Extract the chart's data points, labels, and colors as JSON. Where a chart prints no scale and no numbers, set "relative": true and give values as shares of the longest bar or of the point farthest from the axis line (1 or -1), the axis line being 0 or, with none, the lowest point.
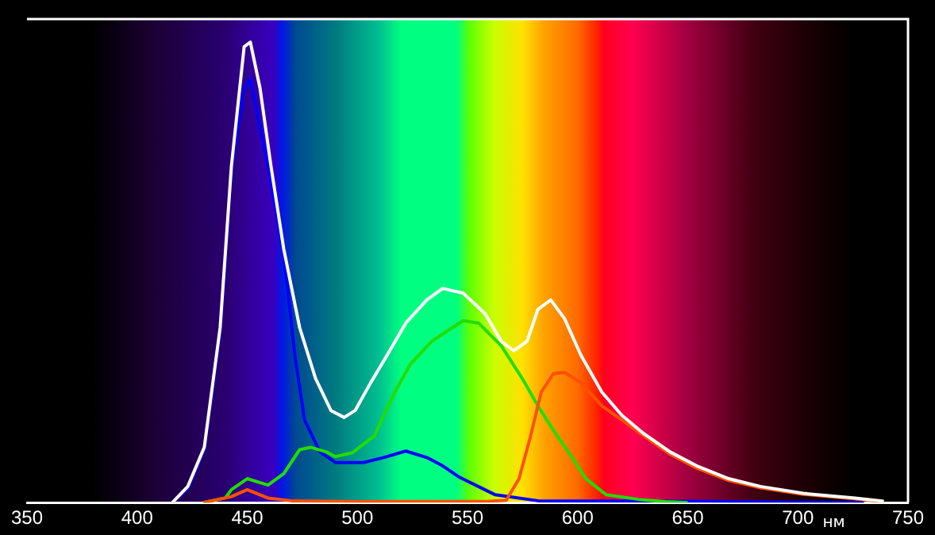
{
  "chart_data": {
    "type": "line",
    "relative": true,
    "xlabel": "нм",
    "xlim": [
      350,
      750
    ],
    "xticks": [
      350,
      400,
      450,
      500,
      550,
      600,
      650,
      700,
      750
    ],
    "grid": false,
    "legend": false,
    "marker": "none",
    "line_style": "solid",
    "series": [
      {
        "color": "#ffffff",
        "x": [
          416,
          423,
          430.5,
          437.7,
          442.8,
          448.6,
          451.4,
          455.8,
          460.8,
          466.6,
          473.8,
          481,
          488,
          494,
          499,
          506,
          513.5,
          522,
          531.5,
          538.7,
          548,
          558,
          565.4,
          571,
          577,
          582,
          587.8,
          594,
          601.5,
          611,
          620,
          630,
          642,
          654,
          668.6,
          683,
          702.5,
          726,
          739
        ],
        "values": [
          0,
          0.035,
          0.12,
          0.38,
          0.73,
          0.99,
          1,
          0.9,
          0.73,
          0.55,
          0.38,
          0.27,
          0.2,
          0.185,
          0.2,
          0.26,
          0.32,
          0.39,
          0.44,
          0.465,
          0.455,
          0.41,
          0.35,
          0.33,
          0.35,
          0.42,
          0.44,
          0.4,
          0.32,
          0.24,
          0.19,
          0.15,
          0.11,
          0.08,
          0.052,
          0.035,
          0.02,
          0.01,
          0.003
        ]
      },
      {
        "color": "#0000ff",
        "x": [
          416,
          423,
          430.5,
          437.7,
          442.8,
          448.6,
          451.4,
          459.4,
          466.6,
          471.6,
          476,
          483,
          490,
          502.7,
          512,
          522,
          531.5,
          538.7,
          546,
          562.6,
          582,
          650,
          730
        ],
        "values": [
          0,
          0.03,
          0.115,
          0.37,
          0.72,
          0.9,
          0.92,
          0.73,
          0.54,
          0.32,
          0.18,
          0.11,
          0.087,
          0.087,
          0.098,
          0.112,
          0.098,
          0.08,
          0.056,
          0.017,
          0.004,
          0.003,
          0
        ]
      },
      {
        "color": "#22dd00",
        "x": [
          430,
          440,
          442.8,
          450,
          459.4,
          466.6,
          473.8,
          478.9,
          486,
          490,
          497.6,
          507.7,
          517,
          524,
          533.7,
          540,
          548,
          555,
          565.4,
          574.8,
          582,
          589,
          596.5,
          603.7,
          613,
          627.6,
          640,
          650
        ],
        "values": [
          0,
          0.01,
          0.028,
          0.052,
          0.038,
          0.063,
          0.115,
          0.12,
          0.11,
          0.1,
          0.108,
          0.145,
          0.24,
          0.3,
          0.35,
          0.37,
          0.395,
          0.39,
          0.34,
          0.27,
          0.21,
          0.157,
          0.105,
          0.052,
          0.017,
          0.007,
          0.002,
          0
        ]
      },
      {
        "color": "#ff5000",
        "x": [
          430,
          442.8,
          450,
          459.4,
          470,
          500,
          560,
          567.6,
          573.4,
          578.4,
          583.5,
          589,
          594,
          601.5,
          611,
          620,
          630,
          642,
          654,
          668.6,
          683,
          702.5,
          726,
          739
        ],
        "values": [
          0,
          0.013,
          0.028,
          0.01,
          0.004,
          0.002,
          0.003,
          0.005,
          0.052,
          0.14,
          0.24,
          0.28,
          0.283,
          0.26,
          0.21,
          0.18,
          0.145,
          0.105,
          0.075,
          0.048,
          0.032,
          0.018,
          0.008,
          0.002
        ]
      }
    ]
  }
}
